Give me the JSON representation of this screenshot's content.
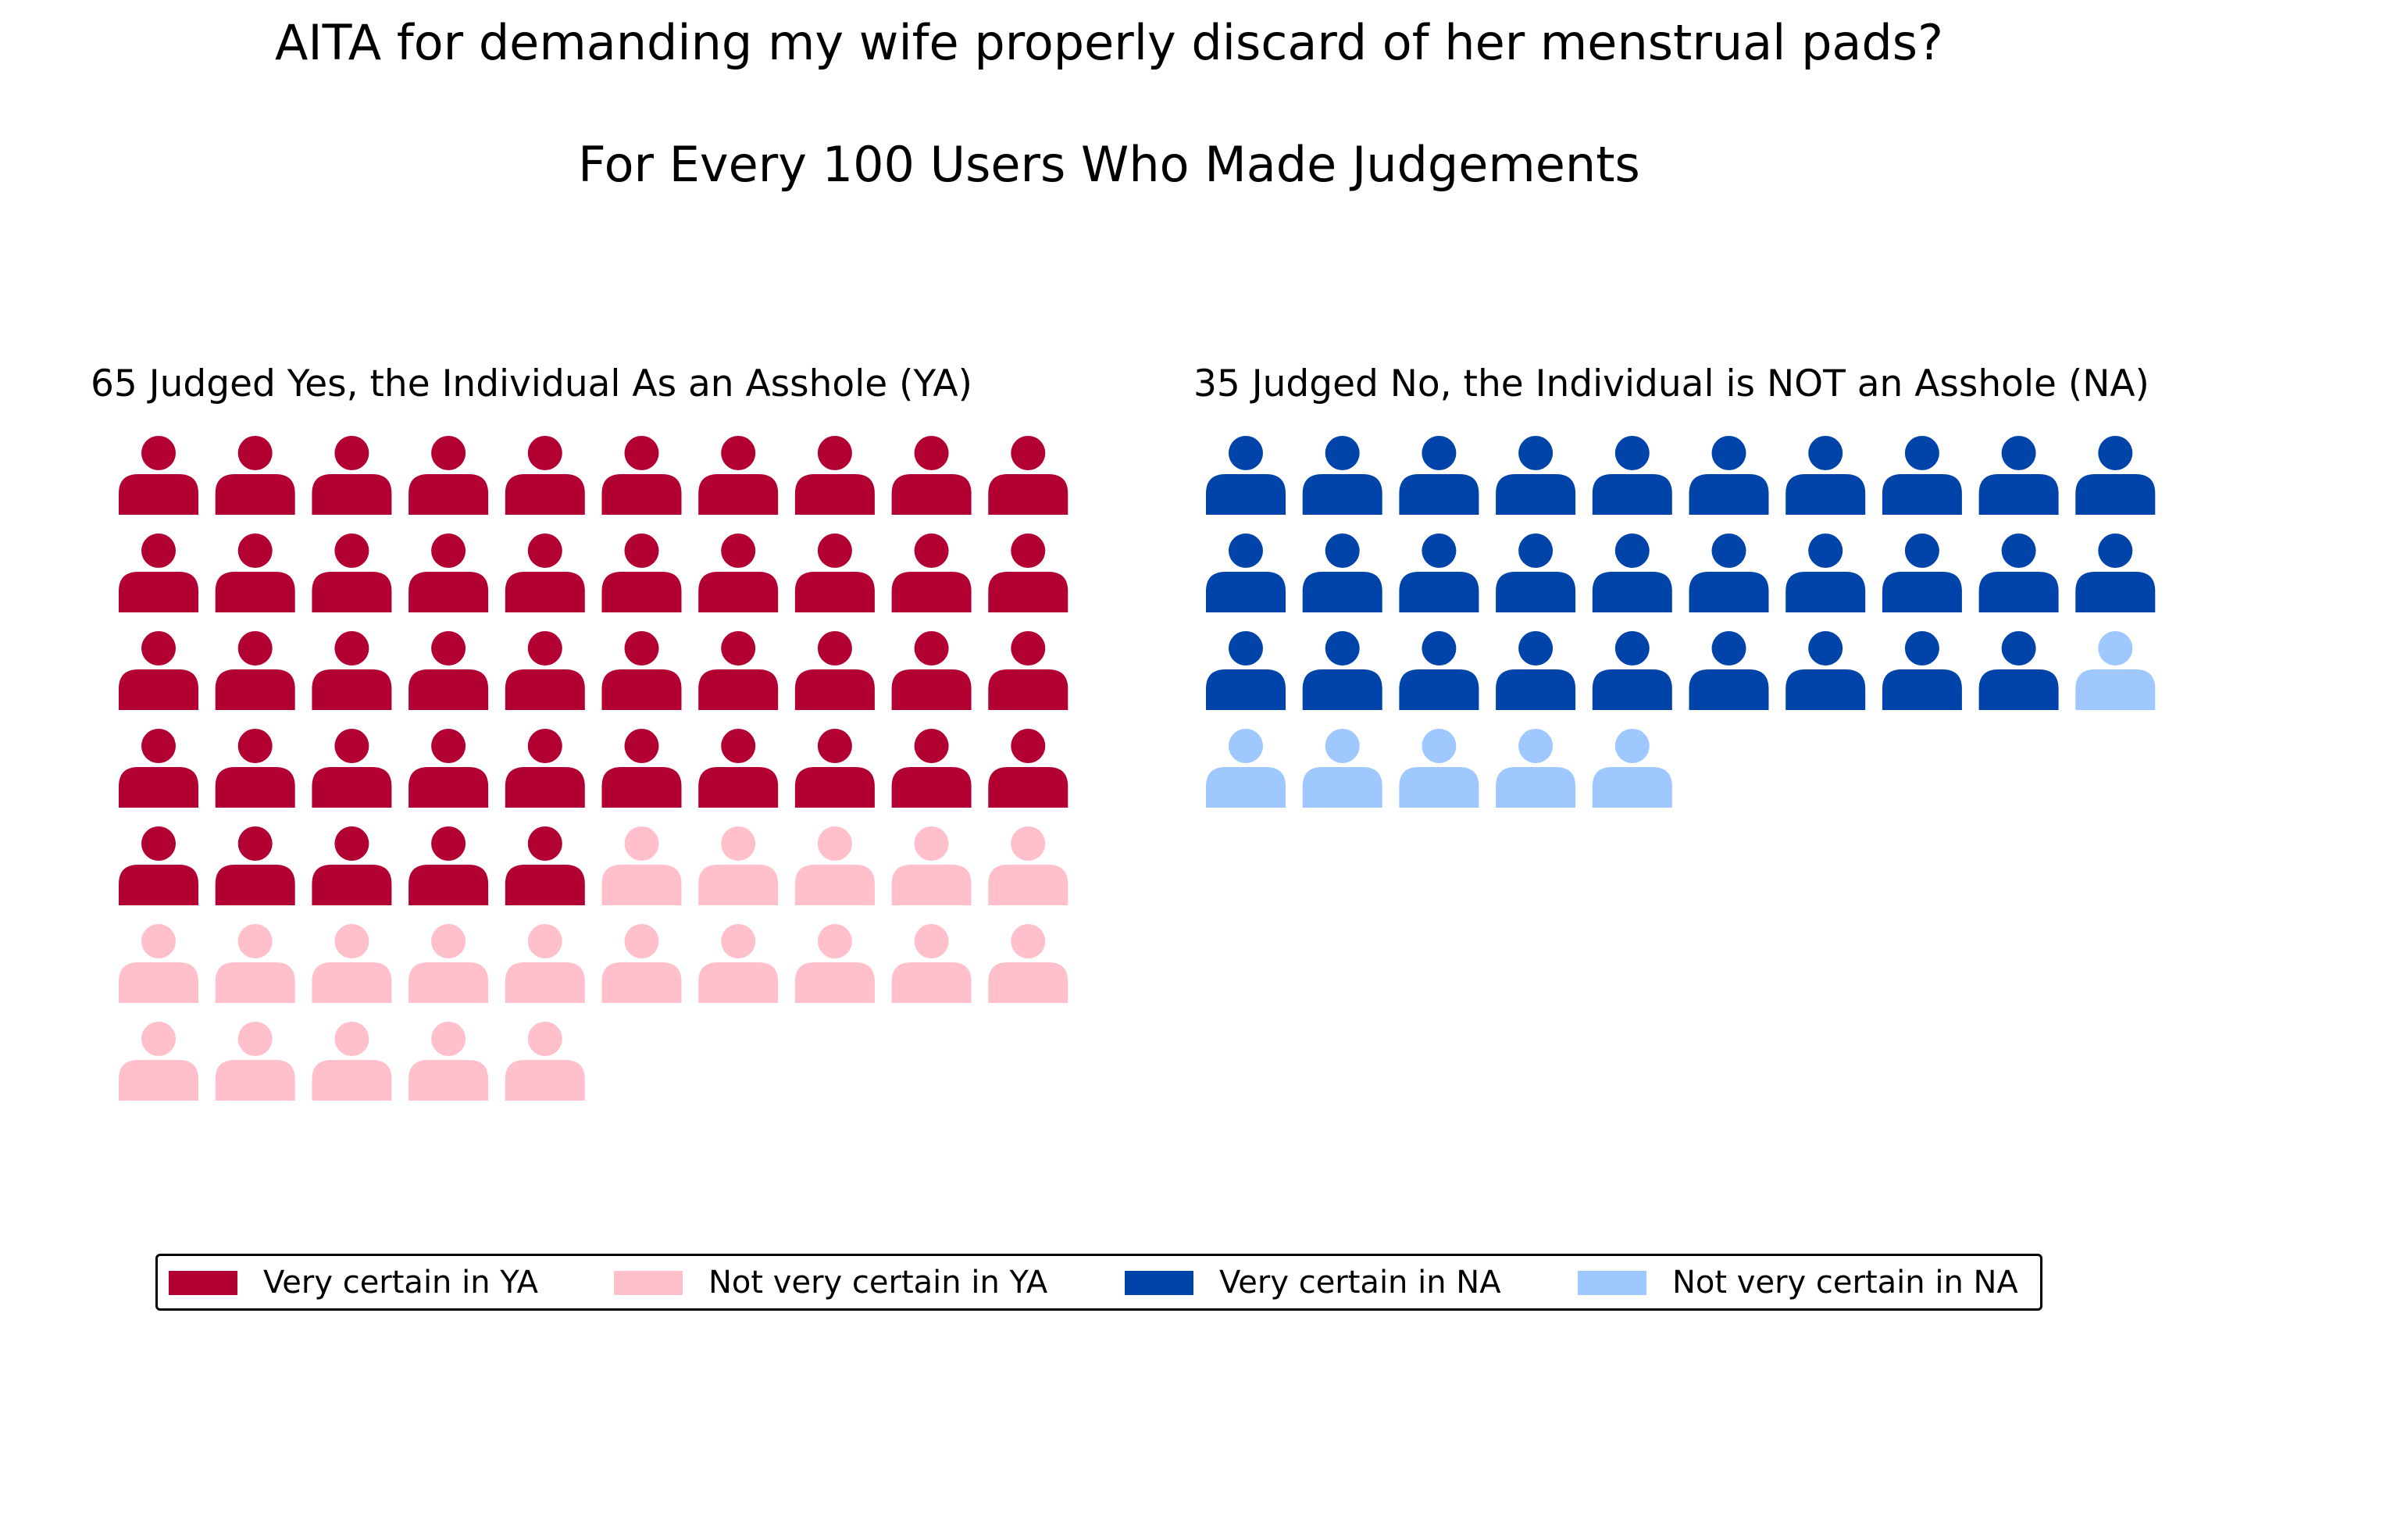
{
  "title": "AITA for demanding my wife properly discard of her menstrual pads?",
  "subtitle": "For Every 100 Users Who Made Judgements",
  "colors": {
    "very_certain_ya": "#b30033",
    "not_very_certain_ya": "#ffc0cb",
    "very_certain_na": "#0044aa",
    "not_very_certain_na": "#9ec8ff"
  },
  "icon": "person-icon",
  "chart_data": {
    "type": "waffle",
    "title": "AITA for demanding my wife properly discard of her menstrual pads?",
    "subtitle": "For Every 100 Users Who Made Judgements",
    "total": 100,
    "columns_per_row": 10,
    "panels": [
      {
        "label": "65 Judged Yes, the Individual As an Asshole (YA)",
        "total": 65,
        "segments": [
          {
            "name": "Very certain in YA",
            "count": 45,
            "color": "#b30033"
          },
          {
            "name": "Not very certain in YA",
            "count": 20,
            "color": "#ffc0cb"
          }
        ]
      },
      {
        "label": "35 Judged No, the Individual is NOT an Asshole (NA)",
        "total": 35,
        "segments": [
          {
            "name": "Very certain in NA",
            "count": 29,
            "color": "#0044aa"
          },
          {
            "name": "Not very certain in NA",
            "count": 6,
            "color": "#9ec8ff"
          }
        ]
      }
    ],
    "legend": {
      "placement": "bottom",
      "entries": [
        {
          "label": "Very certain in YA",
          "color": "#b30033"
        },
        {
          "label": "Not very certain in YA",
          "color": "#ffc0cb"
        },
        {
          "label": "Very certain in NA",
          "color": "#0044aa"
        },
        {
          "label": "Not very certain in NA",
          "color": "#9ec8ff"
        }
      ]
    }
  }
}
